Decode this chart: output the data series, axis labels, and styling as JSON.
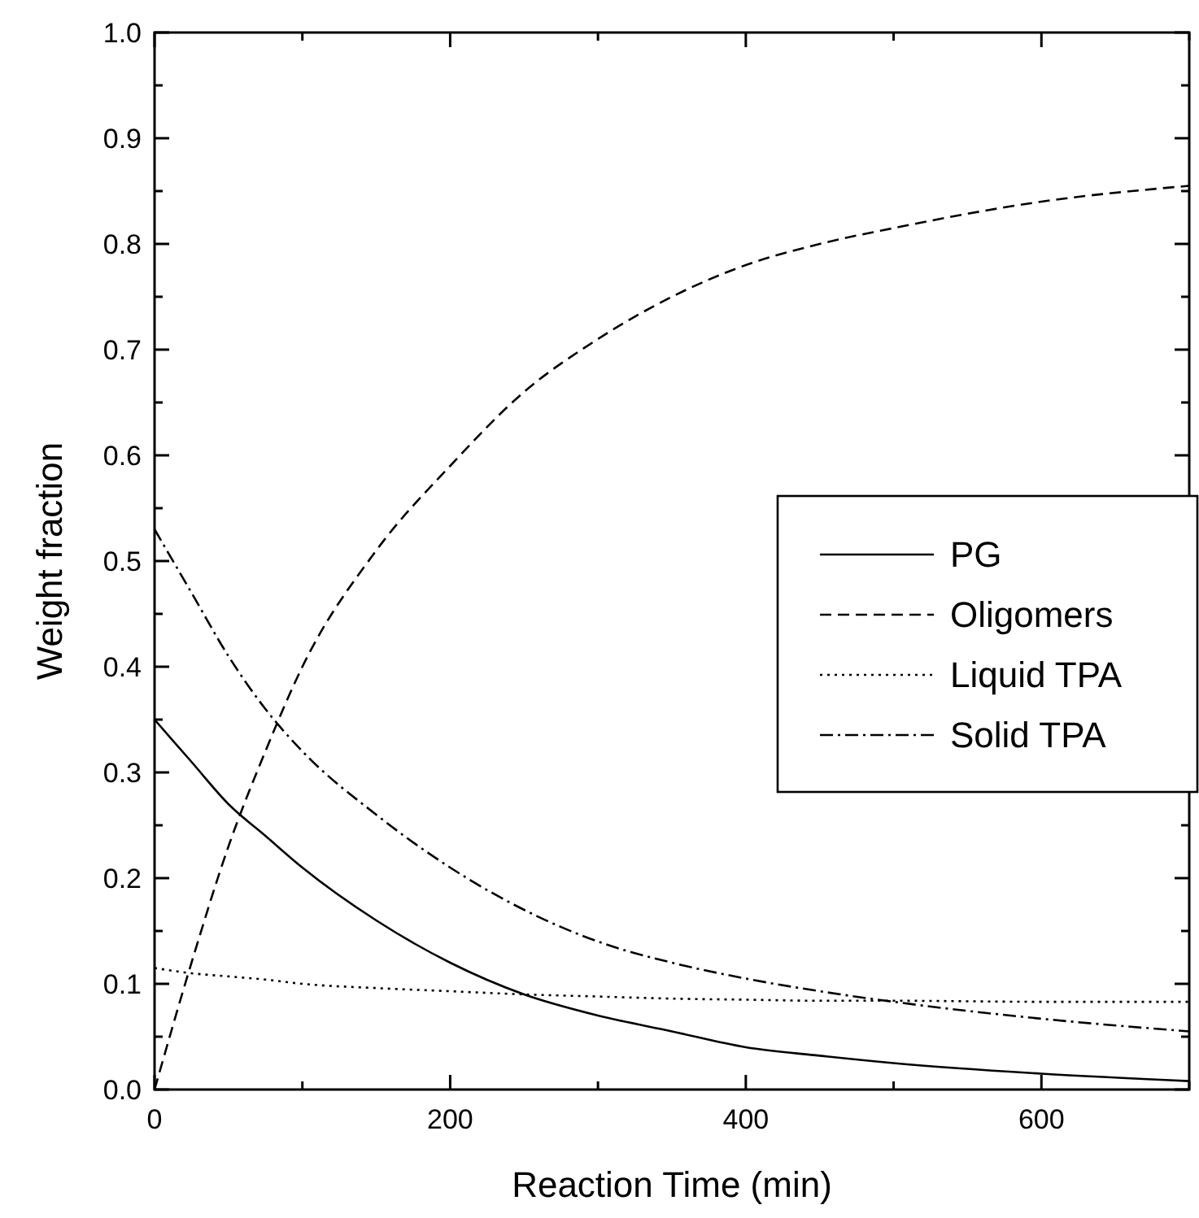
{
  "chart_data": {
    "type": "line",
    "xlabel": "Reaction Time (min)",
    "ylabel": "Weight fraction",
    "xlim": [
      0,
      700
    ],
    "ylim": [
      0,
      1
    ],
    "xticks": [
      0,
      {
        "value": 100,
        "label": null
      },
      200,
      {
        "value": 300,
        "label": null
      },
      400,
      {
        "value": 500,
        "label": null
      },
      600,
      {
        "value": 700,
        "label": null
      }
    ],
    "yticks": [
      {
        "value": 0,
        "label": "0.0"
      },
      {
        "value": 0.05,
        "label": null
      },
      0.1,
      {
        "value": 0.15,
        "label": null
      },
      0.2,
      {
        "value": 0.25,
        "label": null
      },
      0.3,
      {
        "value": 0.35,
        "label": null
      },
      0.4,
      {
        "value": 0.45,
        "label": null
      },
      0.5,
      {
        "value": 0.55,
        "label": null
      },
      0.6,
      {
        "value": 0.65,
        "label": null
      },
      0.7,
      {
        "value": 0.75,
        "label": null
      },
      0.8,
      {
        "value": 0.85,
        "label": null
      },
      0.9,
      {
        "value": 0.95,
        "label": null
      },
      {
        "value": 1,
        "label": "1.0"
      }
    ],
    "x": [
      0,
      25,
      50,
      75,
      100,
      150,
      200,
      250,
      300,
      350,
      400,
      450,
      500,
      600,
      700
    ],
    "legend": "right",
    "grid": false,
    "series": [
      {
        "name": "PG",
        "color": "#000000",
        "line_style": "solid",
        "values": [
          0.35,
          0.31,
          0.27,
          0.24,
          0.21,
          0.16,
          0.12,
          0.09,
          0.07,
          0.055,
          0.04,
          0.032,
          0.025,
          0.015,
          0.008
        ]
      },
      {
        "name": "Oligomers",
        "color": "#000000",
        "line_style": "dashed",
        "values": [
          0,
          0.12,
          0.23,
          0.32,
          0.4,
          0.51,
          0.59,
          0.66,
          0.71,
          0.75,
          0.78,
          0.8,
          0.815,
          0.84,
          0.855
        ]
      },
      {
        "name": "Liquid TPA",
        "color": "#000000",
        "line_style": "dotted",
        "values": [
          0.115,
          0.11,
          0.107,
          0.104,
          0.1,
          0.096,
          0.093,
          0.09,
          0.088,
          0.086,
          0.085,
          0.084,
          0.084,
          0.083,
          0.083
        ]
      },
      {
        "name": "Solid TPA",
        "color": "#000000",
        "line_style": "dashdot",
        "values": [
          0.53,
          0.47,
          0.41,
          0.36,
          0.32,
          0.26,
          0.21,
          0.17,
          0.14,
          0.12,
          0.105,
          0.093,
          0.083,
          0.067,
          0.055
        ]
      }
    ]
  }
}
